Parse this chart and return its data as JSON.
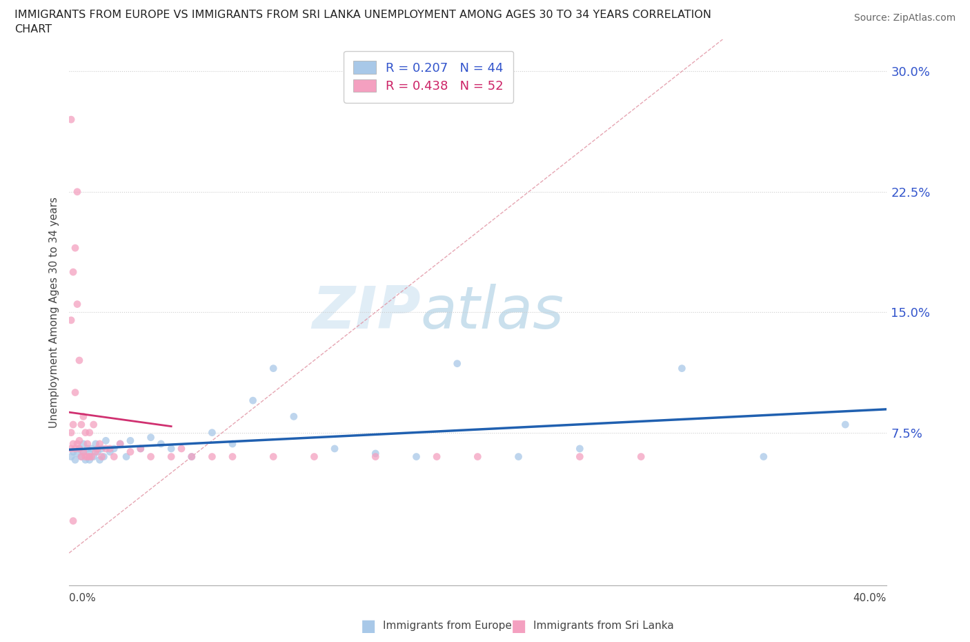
{
  "title_line1": "IMMIGRANTS FROM EUROPE VS IMMIGRANTS FROM SRI LANKA UNEMPLOYMENT AMONG AGES 30 TO 34 YEARS CORRELATION",
  "title_line2": "CHART",
  "source": "Source: ZipAtlas.com",
  "ylabel": "Unemployment Among Ages 30 to 34 years",
  "legend_europe": "Immigrants from Europe",
  "legend_srilanka": "Immigrants from Sri Lanka",
  "R_europe": 0.207,
  "N_europe": 44,
  "R_srilanka": 0.438,
  "N_srilanka": 52,
  "color_europe": "#a8c8e8",
  "color_srilanka": "#f4a0c0",
  "color_line_europe": "#2060b0",
  "color_line_srilanka": "#d03070",
  "color_diag": "#e090a0",
  "watermark_zip": "ZIP",
  "watermark_atlas": "atlas",
  "xlim": [
    0.0,
    0.4
  ],
  "ylim": [
    -0.02,
    0.32
  ],
  "ytick_vals": [
    0.075,
    0.15,
    0.225,
    0.3
  ],
  "ytick_labels": [
    "7.5%",
    "15.0%",
    "22.5%",
    "30.0%"
  ],
  "europe_x": [
    0.001,
    0.002,
    0.003,
    0.004,
    0.005,
    0.006,
    0.007,
    0.007,
    0.008,
    0.009,
    0.01,
    0.01,
    0.011,
    0.012,
    0.013,
    0.014,
    0.015,
    0.016,
    0.017,
    0.018,
    0.02,
    0.022,
    0.025,
    0.028,
    0.03,
    0.035,
    0.04,
    0.045,
    0.05,
    0.06,
    0.07,
    0.08,
    0.09,
    0.1,
    0.11,
    0.13,
    0.15,
    0.17,
    0.19,
    0.22,
    0.25,
    0.3,
    0.34,
    0.38
  ],
  "europe_y": [
    0.06,
    0.063,
    0.058,
    0.062,
    0.065,
    0.06,
    0.063,
    0.068,
    0.058,
    0.065,
    0.062,
    0.058,
    0.065,
    0.06,
    0.068,
    0.063,
    0.058,
    0.065,
    0.06,
    0.07,
    0.063,
    0.065,
    0.068,
    0.06,
    0.07,
    0.065,
    0.072,
    0.068,
    0.065,
    0.06,
    0.075,
    0.068,
    0.095,
    0.115,
    0.085,
    0.065,
    0.062,
    0.06,
    0.118,
    0.06,
    0.065,
    0.115,
    0.06,
    0.08
  ],
  "srilanka_x": [
    0.001,
    0.001,
    0.001,
    0.002,
    0.002,
    0.002,
    0.003,
    0.003,
    0.003,
    0.004,
    0.004,
    0.004,
    0.005,
    0.005,
    0.005,
    0.006,
    0.006,
    0.007,
    0.007,
    0.008,
    0.008,
    0.009,
    0.009,
    0.01,
    0.01,
    0.011,
    0.012,
    0.013,
    0.014,
    0.015,
    0.016,
    0.018,
    0.02,
    0.022,
    0.025,
    0.03,
    0.035,
    0.04,
    0.05,
    0.055,
    0.06,
    0.07,
    0.08,
    0.1,
    0.12,
    0.15,
    0.18,
    0.2,
    0.25,
    0.28,
    0.001,
    0.002
  ],
  "srilanka_y": [
    0.065,
    0.075,
    0.145,
    0.068,
    0.08,
    0.175,
    0.065,
    0.1,
    0.19,
    0.068,
    0.155,
    0.225,
    0.065,
    0.07,
    0.12,
    0.06,
    0.08,
    0.063,
    0.085,
    0.06,
    0.075,
    0.06,
    0.068,
    0.06,
    0.075,
    0.06,
    0.08,
    0.063,
    0.065,
    0.068,
    0.06,
    0.065,
    0.065,
    0.06,
    0.068,
    0.063,
    0.065,
    0.06,
    0.06,
    0.065,
    0.06,
    0.06,
    0.06,
    0.06,
    0.06,
    0.06,
    0.06,
    0.06,
    0.06,
    0.06,
    0.27,
    0.02
  ]
}
